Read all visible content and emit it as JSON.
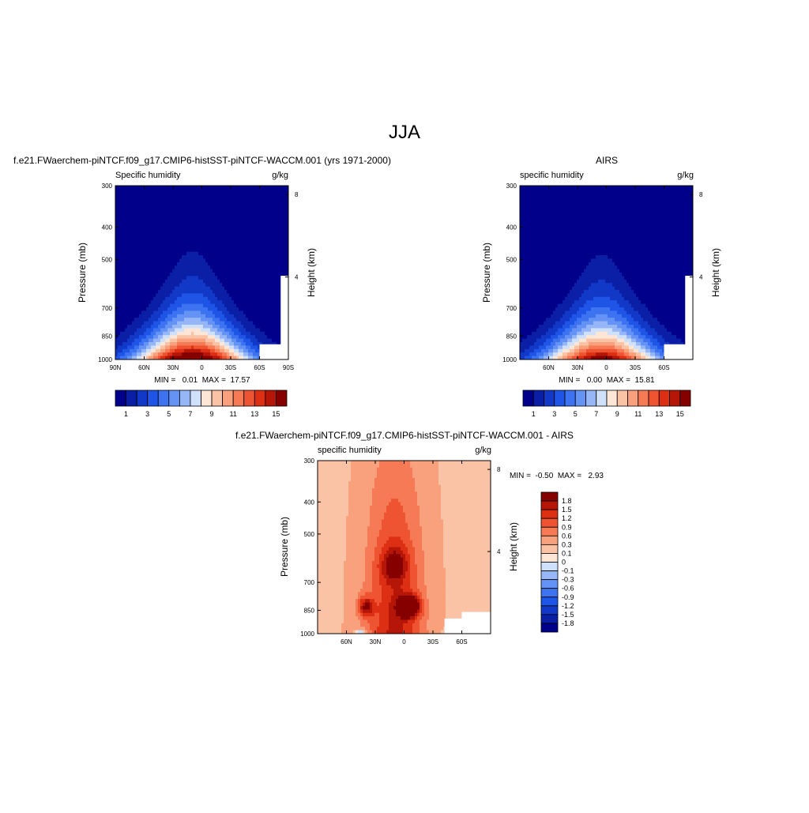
{
  "page": {
    "title": "JJA"
  },
  "chart_data": [
    {
      "type": "heatmap",
      "id": "model",
      "title": "f.e21.FWaerchem-piNTCF.f09_g17.CMIP6-histSST-piNTCF-WACCM.001 (yrs 1971-2000)",
      "left_label": "Specific humidity",
      "units": "g/kg",
      "ylabel": "Pressure (mb)",
      "ylabel_right": "Height (km)",
      "x_ticks": [
        "90N",
        "60N",
        "30N",
        "0",
        "30S",
        "60S",
        "90S"
      ],
      "y_ticks": [
        "300",
        "400",
        "500",
        "700",
        "850",
        "1000"
      ],
      "y2_ticks": [
        "8",
        "4"
      ],
      "x_range": [
        90,
        -90
      ],
      "y_range": [
        300,
        1000
      ],
      "y_scale": "log",
      "stats": "MIN =   0.01  MAX =  17.57",
      "min": 0.01,
      "max": 17.57,
      "peak": {
        "lat": 10,
        "p": 1000
      },
      "levels": [
        1,
        2,
        3,
        4,
        5,
        6,
        7,
        8,
        9,
        10,
        11,
        12,
        13,
        14,
        15
      ],
      "colorbar_labels": [
        "1",
        "3",
        "5",
        "7",
        "9",
        "11",
        "13",
        "15"
      ],
      "colors": [
        "#00008b",
        "#0a1fa6",
        "#1238c8",
        "#1f55e6",
        "#3d73f0",
        "#6593f5",
        "#96b6f8",
        "#cfe0fb",
        "#fde6d6",
        "#fbc3a6",
        "#f9a07c",
        "#f57a55",
        "#ee5431",
        "#dd2f14",
        "#b51607",
        "#870000"
      ]
    },
    {
      "type": "heatmap",
      "id": "obs",
      "title": "AIRS",
      "left_label": "specific humidity",
      "units": "g/kg",
      "ylabel": "Pressure (mb)",
      "ylabel_right": "Height (km)",
      "x_ticks": [
        "60N",
        "30N",
        "0",
        "30S",
        "60S"
      ],
      "y_ticks": [
        "300",
        "400",
        "500",
        "700",
        "850",
        "1000"
      ],
      "y2_ticks": [
        "8",
        "4"
      ],
      "x_range": [
        90,
        -90
      ],
      "y_range": [
        300,
        1000
      ],
      "y_scale": "log",
      "stats": "MIN =   0.00  MAX =  15.81",
      "min": 0.0,
      "max": 15.81,
      "peak": {
        "lat": 5,
        "p": 1000
      },
      "levels": [
        1,
        2,
        3,
        4,
        5,
        6,
        7,
        8,
        9,
        10,
        11,
        12,
        13,
        14,
        15
      ],
      "colorbar_labels": [
        "1",
        "3",
        "5",
        "7",
        "9",
        "11",
        "13",
        "15"
      ],
      "colors": [
        "#00008b",
        "#0a1fa6",
        "#1238c8",
        "#1f55e6",
        "#3d73f0",
        "#6593f5",
        "#96b6f8",
        "#cfe0fb",
        "#fde6d6",
        "#fbc3a6",
        "#f9a07c",
        "#f57a55",
        "#ee5431",
        "#dd2f14",
        "#b51607",
        "#870000"
      ]
    },
    {
      "type": "heatmap",
      "id": "diff",
      "title": "f.e21.FWaerchem-piNTCF.f09_g17.CMIP6-histSST-piNTCF-WACCM.001 - AIRS",
      "left_label": "specific humidity",
      "units": "g/kg",
      "ylabel": "Pressure (mb)",
      "ylabel_right": "Height (km)",
      "x_ticks": [
        "60N",
        "30N",
        "0",
        "30S",
        "60S"
      ],
      "y_ticks": [
        "300",
        "400",
        "500",
        "700",
        "850",
        "1000"
      ],
      "y2_ticks": [
        "8",
        "4"
      ],
      "x_range": [
        90,
        -90
      ],
      "y_range": [
        300,
        1000
      ],
      "y_scale": "log",
      "stats": "MIN =  -0.50  MAX =   2.93",
      "min": -0.5,
      "max": 2.93,
      "levels": [
        -1.8,
        -1.5,
        -1.2,
        -0.9,
        -0.6,
        -0.3,
        -0.1,
        0,
        0.1,
        0.3,
        0.6,
        0.9,
        1.2,
        1.5,
        1.8
      ],
      "colorbar_labels": [
        "1.8",
        "1.5",
        "1.2",
        "0.9",
        "0.6",
        "0.3",
        "0.1",
        "0",
        "-0.1",
        "-0.3",
        "-0.6",
        "-0.9",
        "-1.2",
        "-1.5",
        "-1.8"
      ],
      "colors": [
        "#00008b",
        "#0a1fa6",
        "#1238c8",
        "#1f55e6",
        "#3d73f0",
        "#6593f5",
        "#96b6f8",
        "#cfe0fb",
        "#fde6d6",
        "#fbc3a6",
        "#f9a07c",
        "#f57a55",
        "#ee5431",
        "#dd2f14",
        "#b51607",
        "#870000"
      ]
    }
  ]
}
